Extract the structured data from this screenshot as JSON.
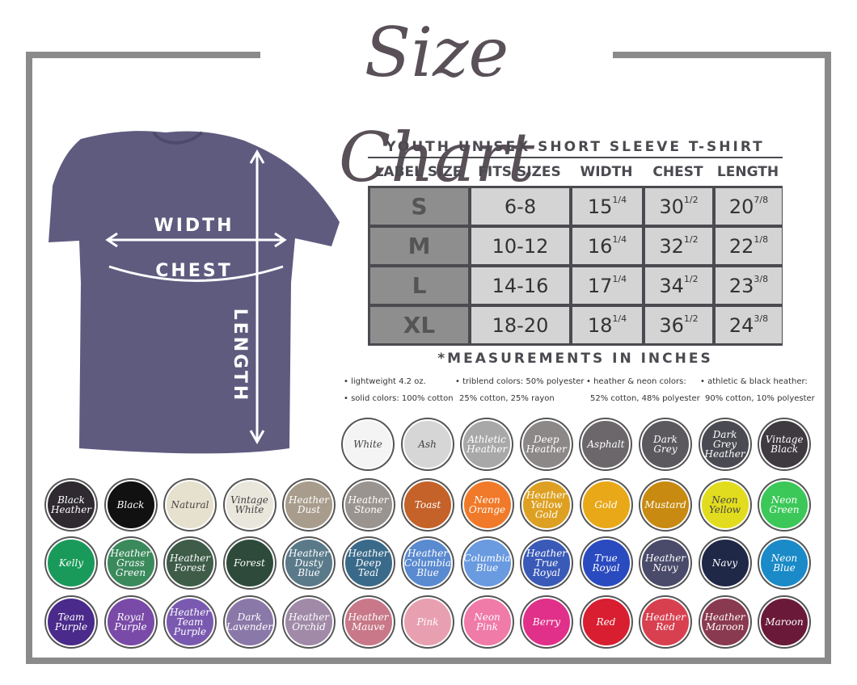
{
  "title": "Size Chart",
  "shirt_labels": {
    "width": "WIDTH",
    "chest": "CHEST",
    "length": "LENGTH"
  },
  "table": {
    "title": "YOUTH UNISEX SHORT SLEEVE T-SHIRT",
    "headers": [
      "LABEL SIZE",
      "FITS SIZES",
      "WIDTH",
      "CHEST",
      "LENGTH"
    ],
    "rows": [
      [
        "S",
        "6-8",
        [
          "15",
          "1/4"
        ],
        [
          "30",
          "1/2"
        ],
        [
          "20",
          "7/8"
        ]
      ],
      [
        "M",
        "10-12",
        [
          "16",
          "1/4"
        ],
        [
          "32",
          "1/2"
        ],
        [
          "22",
          "1/8"
        ]
      ],
      [
        "L",
        "14-16",
        [
          "17",
          "1/4"
        ],
        [
          "34",
          "1/2"
        ],
        [
          "23",
          "3/8"
        ]
      ],
      [
        "XL",
        "18-20",
        [
          "18",
          "1/4"
        ],
        [
          "36",
          "1/2"
        ],
        [
          "24",
          "3/8"
        ]
      ]
    ],
    "note": "*MEASUREMENTS IN INCHES"
  },
  "fabric_notes": [
    [
      "• lightweight 4.2 oz.",
      "• solid colors: 100% cotton"
    ],
    [
      "• triblend colors: 50% polyester",
      "25% cotton, 25% rayon"
    ],
    [
      "• heather & neon colors:",
      "52% cotton, 48% polyester"
    ],
    [
      "• athletic & black heather:",
      "90% cotton, 10% polyester"
    ]
  ],
  "swatches": [
    [
      {
        "name": "White",
        "color": "#f4f4f4"
      },
      {
        "name": "Ash",
        "color": "#d6d6d6"
      },
      {
        "name": "Athletic Heather",
        "color": "#a8a8a8"
      },
      {
        "name": "Deep Heather",
        "color": "#8c8888"
      },
      {
        "name": "Asphalt",
        "color": "#6b676a"
      },
      {
        "name": "Dark Grey",
        "color": "#5b595e"
      },
      {
        "name": "Dark Grey Heather",
        "color": "#4a4a52"
      },
      {
        "name": "Vintage Black",
        "color": "#3e3a40"
      }
    ],
    [
      {
        "name": "Black Heather",
        "color": "#2e2a30"
      },
      {
        "name": "Black",
        "color": "#111111"
      },
      {
        "name": "Natural",
        "color": "#e6e0ce"
      },
      {
        "name": "Vintage White",
        "color": "#e9e6dc"
      },
      {
        "name": "Heather Dust",
        "color": "#a89c8c"
      },
      {
        "name": "Heather Stone",
        "color": "#9a9490"
      },
      {
        "name": "Toast",
        "color": "#c4622a"
      },
      {
        "name": "Neon Orange",
        "color": "#f07a2a"
      },
      {
        "name": "Heather Yellow Gold",
        "color": "#dea022"
      },
      {
        "name": "Gold",
        "color": "#e8a818"
      },
      {
        "name": "Mustard",
        "color": "#c88a10"
      },
      {
        "name": "Neon Yellow",
        "color": "#e2dc1e"
      },
      {
        "name": "Neon Green",
        "color": "#3cc858"
      }
    ],
    [
      {
        "name": "Kelly",
        "color": "#1a9a5a"
      },
      {
        "name": "Heather Grass Green",
        "color": "#3a8a5c"
      },
      {
        "name": "Heather Forest",
        "color": "#3e5c48"
      },
      {
        "name": "Forest",
        "color": "#2e4a3a"
      },
      {
        "name": "Heather Dusty Blue",
        "color": "#5a7a8a"
      },
      {
        "name": "Heather Deep Teal",
        "color": "#3a6a8a"
      },
      {
        "name": "Heather Columbia Blue",
        "color": "#5a8ad0"
      },
      {
        "name": "Columbia Blue",
        "color": "#6a9ae0"
      },
      {
        "name": "Heather True Royal",
        "color": "#3a5ab8"
      },
      {
        "name": "True Royal",
        "color": "#2a4ac0"
      },
      {
        "name": "Heather Navy",
        "color": "#4a4a6a"
      },
      {
        "name": "Navy",
        "color": "#202848"
      },
      {
        "name": "Neon Blue",
        "color": "#1a8ac8"
      }
    ],
    [
      {
        "name": "Team Purple",
        "color": "#4a2a8a"
      },
      {
        "name": "Royal Purple",
        "color": "#7a4aa8"
      },
      {
        "name": "Heather Team Purple",
        "color": "#7a5ab0"
      },
      {
        "name": "Dark Lavender",
        "color": "#8a78a8"
      },
      {
        "name": "Heather Orchid",
        "color": "#a08aa8"
      },
      {
        "name": "Heather Mauve",
        "color": "#c87888"
      },
      {
        "name": "Pink",
        "color": "#e8a0b0"
      },
      {
        "name": "Neon Pink",
        "color": "#f07aa8"
      },
      {
        "name": "Berry",
        "color": "#e0308a"
      },
      {
        "name": "Red",
        "color": "#d81e30"
      },
      {
        "name": "Heather Red",
        "color": "#d84050"
      },
      {
        "name": "Heather Maroon",
        "color": "#8a3a50"
      },
      {
        "name": "Maroon",
        "color": "#6a1a38"
      }
    ]
  ]
}
